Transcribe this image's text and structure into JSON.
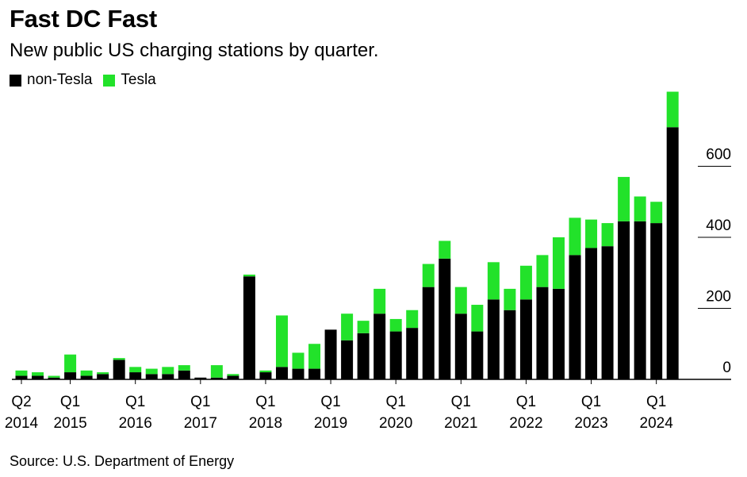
{
  "title": "Fast DC Fast",
  "subtitle": "New public US charging stations by quarter.",
  "source": "Source: U.S. Department of Energy",
  "colors": {
    "non_tesla": "#000000",
    "tesla": "#22e22a",
    "axis": "#000000"
  },
  "chart_data": {
    "type": "bar",
    "stacked": true,
    "legend_position": "top-left",
    "grid": false,
    "y_axis_side": "right",
    "ylim": [
      0,
      800
    ],
    "y_ticks": [
      0,
      200,
      400,
      600
    ],
    "categories": [
      "Q2 2014",
      "Q3 2014",
      "Q4 2014",
      "Q1 2015",
      "Q2 2015",
      "Q3 2015",
      "Q4 2015",
      "Q1 2016",
      "Q2 2016",
      "Q3 2016",
      "Q4 2016",
      "Q1 2017",
      "Q2 2017",
      "Q3 2017",
      "Q4 2017",
      "Q1 2018",
      "Q2 2018",
      "Q3 2018",
      "Q4 2018",
      "Q1 2019",
      "Q2 2019",
      "Q3 2019",
      "Q4 2019",
      "Q1 2020",
      "Q2 2020",
      "Q3 2020",
      "Q4 2020",
      "Q1 2021",
      "Q2 2021",
      "Q3 2021",
      "Q4 2021",
      "Q1 2022",
      "Q2 2022",
      "Q3 2022",
      "Q4 2022",
      "Q1 2023",
      "Q2 2023",
      "Q3 2023",
      "Q4 2023",
      "Q1 2024",
      "Q2 2024"
    ],
    "x_tick_labels": [
      {
        "index": 0,
        "line1": "Q2",
        "line2": "2014"
      },
      {
        "index": 3,
        "line1": "Q1",
        "line2": "2015"
      },
      {
        "index": 7,
        "line1": "Q1",
        "line2": "2016"
      },
      {
        "index": 11,
        "line1": "Q1",
        "line2": "2017"
      },
      {
        "index": 15,
        "line1": "Q1",
        "line2": "2018"
      },
      {
        "index": 19,
        "line1": "Q1",
        "line2": "2019"
      },
      {
        "index": 23,
        "line1": "Q1",
        "line2": "2020"
      },
      {
        "index": 27,
        "line1": "Q1",
        "line2": "2021"
      },
      {
        "index": 31,
        "line1": "Q1",
        "line2": "2022"
      },
      {
        "index": 35,
        "line1": "Q1",
        "line2": "2023"
      },
      {
        "index": 39,
        "line1": "Q1",
        "line2": "2024"
      }
    ],
    "series": [
      {
        "name": "non-Tesla",
        "values": [
          10,
          10,
          5,
          20,
          10,
          15,
          55,
          20,
          15,
          15,
          25,
          5,
          5,
          10,
          290,
          20,
          35,
          30,
          30,
          140,
          110,
          130,
          185,
          135,
          145,
          260,
          340,
          185,
          135,
          225,
          195,
          225,
          260,
          255,
          350,
          370,
          375,
          445,
          445,
          440,
          710
        ]
      },
      {
        "name": "Tesla",
        "values": [
          15,
          10,
          5,
          50,
          15,
          5,
          5,
          15,
          15,
          20,
          15,
          0,
          35,
          5,
          5,
          5,
          145,
          45,
          70,
          0,
          75,
          35,
          70,
          35,
          50,
          65,
          50,
          75,
          75,
          105,
          60,
          95,
          90,
          145,
          105,
          80,
          65,
          125,
          70,
          60,
          100
        ]
      }
    ]
  }
}
